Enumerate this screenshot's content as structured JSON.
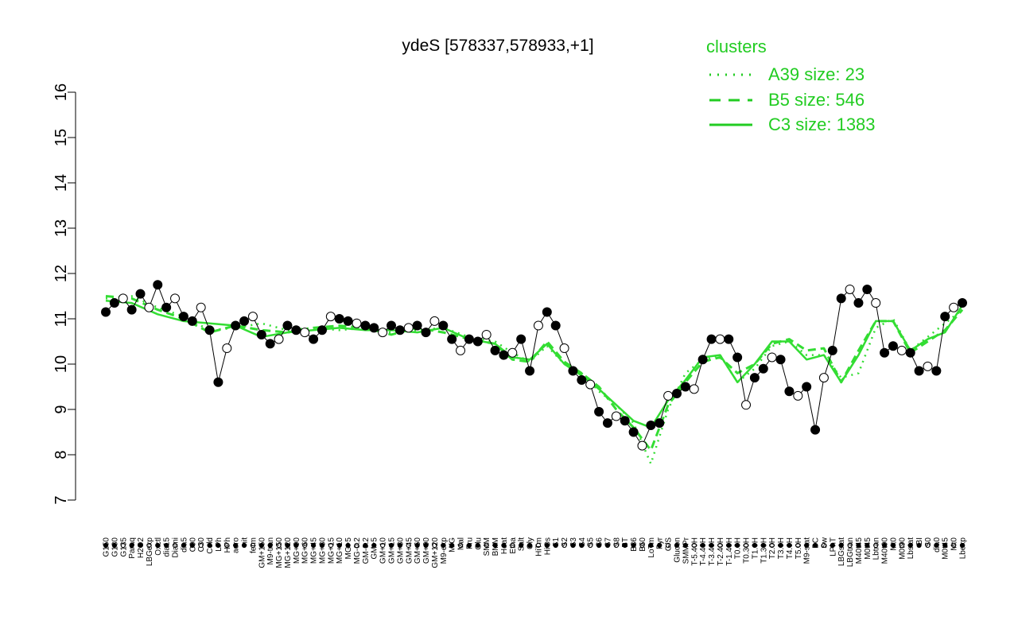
{
  "chart_data": {
    "type": "line",
    "title": "ydeS [578337,578933,+1]",
    "xlabel": "",
    "ylabel": "",
    "ylim": [
      7,
      16
    ],
    "yticks": [
      7,
      8,
      9,
      10,
      11,
      12,
      13,
      14,
      15,
      16
    ],
    "legend": {
      "title": "clusters",
      "placement": "top-right",
      "entries": [
        {
          "label": "A39 size: 23",
          "style": "dotted"
        },
        {
          "label": "B5 size: 546",
          "style": "dashed"
        },
        {
          "label": "C3 size: 1383",
          "style": "solid"
        }
      ]
    },
    "xtick_labels": [
      "G150",
      "G180",
      "G135",
      "Paraq",
      "H2O2",
      "LBGexp",
      "Oxctl",
      "dia15",
      "Diami",
      "dia5",
      "C90",
      "C30",
      "Cold",
      "LPh",
      "HPh",
      "aero",
      "nit",
      "ferm",
      "GM+150",
      "M9-tran",
      "MG+150",
      "MG+120",
      "MG+90",
      "MG+60",
      "MG+45",
      "MG+30",
      "MG+15",
      "MG+10",
      "MG+5",
      "MG-0.2",
      "GM-0.2",
      "GM+5",
      "GM+10",
      "GM+15",
      "GM+30",
      "GM+45",
      "GM+60",
      "GM+90",
      "GM+120",
      "M9-exp",
      "M/G",
      "Mal",
      "Fru",
      "Glu",
      "SMM",
      "BMM",
      "Heat",
      "Etha",
      "Salt",
      "Gly",
      "HiTm",
      "HiOs",
      "S1",
      "S2",
      "S3",
      "S4",
      "S5",
      "S6",
      "S7",
      "S8",
      "BT",
      "B36",
      "B60",
      "LoTm",
      "Pyr",
      "G/S",
      "Glucon",
      "SMMPr",
      "T-5.40H",
      "T-4.40H",
      "T-3.40H",
      "T-2.40H",
      "T-1.40H",
      "T0.0H",
      "T0.30H",
      "T1.0H",
      "T1.30H",
      "T2.0H",
      "T3.0H",
      "T4.0H",
      "T5.0H",
      "M9-stat",
      "BC",
      "Sw",
      "LPhT",
      "LBGstat",
      "LBGtran",
      "M40t45",
      "M0t45",
      "Lbtran",
      "M40t90",
      "Mt0",
      "M0t90",
      "Lbstat",
      "BI",
      "S0",
      "dia0",
      "M0t45",
      "Mt0",
      "Lbexp"
    ],
    "series": [
      {
        "name": "A39 size: 23",
        "style": "dotted",
        "x": [
          1,
          4,
          7,
          10,
          13,
          16,
          19,
          22,
          25,
          28,
          31,
          34,
          37,
          40,
          43,
          46,
          48,
          50,
          52,
          54,
          56,
          58,
          60,
          62,
          64,
          66,
          68,
          70,
          72,
          74,
          76,
          78,
          80,
          82,
          84,
          86,
          88,
          90,
          92,
          94,
          96,
          98,
          100
        ],
        "values": [
          11.45,
          11.5,
          11.25,
          11.05,
          10.75,
          10.8,
          10.9,
          10.75,
          10.8,
          10.75,
          10.8,
          10.7,
          10.75,
          10.8,
          10.6,
          10.5,
          10.25,
          10.05,
          10.4,
          10.0,
          9.8,
          9.4,
          9.1,
          8.7,
          7.8,
          9.0,
          9.8,
          10.1,
          10.2,
          9.6,
          9.9,
          10.4,
          10.5,
          10.2,
          10.2,
          9.7,
          9.8,
          10.8,
          11.0,
          10.3,
          10.6,
          10.9,
          11.2
        ]
      },
      {
        "name": "B5 size: 546",
        "style": "dashed",
        "x": [
          1,
          4,
          7,
          10,
          13,
          16,
          19,
          22,
          25,
          28,
          31,
          34,
          37,
          40,
          43,
          46,
          48,
          50,
          52,
          54,
          56,
          58,
          60,
          62,
          64,
          66,
          68,
          70,
          72,
          74,
          76,
          78,
          80,
          82,
          84,
          86,
          88,
          90,
          92,
          94,
          96,
          98,
          100
        ],
        "values": [
          11.5,
          11.45,
          11.2,
          11.0,
          10.7,
          10.85,
          10.75,
          10.7,
          10.8,
          10.85,
          10.8,
          10.65,
          10.8,
          10.7,
          10.55,
          10.45,
          10.1,
          10.05,
          10.5,
          10.05,
          9.8,
          9.5,
          9.0,
          8.6,
          8.1,
          9.1,
          9.6,
          10.05,
          10.15,
          9.8,
          10.0,
          10.45,
          10.55,
          10.3,
          10.35,
          9.6,
          10.3,
          10.95,
          10.95,
          10.25,
          10.5,
          10.75,
          11.2
        ]
      },
      {
        "name": "C3 size: 1383",
        "style": "solid",
        "x": [
          1,
          4,
          7,
          10,
          13,
          16,
          19,
          22,
          25,
          28,
          31,
          34,
          37,
          40,
          43,
          46,
          48,
          50,
          52,
          54,
          56,
          58,
          60,
          62,
          64,
          66,
          68,
          70,
          72,
          74,
          76,
          78,
          80,
          82,
          84,
          86,
          88,
          90,
          92,
          94,
          96,
          98,
          100
        ],
        "values": [
          11.4,
          11.35,
          11.1,
          10.95,
          10.9,
          10.85,
          10.6,
          10.7,
          10.75,
          10.8,
          10.75,
          10.75,
          10.7,
          10.8,
          10.55,
          10.45,
          10.15,
          10.1,
          10.45,
          10.0,
          9.75,
          9.45,
          9.1,
          8.75,
          8.6,
          9.2,
          9.65,
          10.15,
          10.2,
          9.6,
          10.0,
          10.5,
          10.5,
          10.1,
          10.2,
          9.6,
          10.2,
          10.95,
          10.95,
          10.3,
          10.55,
          10.7,
          11.3
        ]
      },
      {
        "name": "",
        "style": "points",
        "x": [
          1,
          2,
          3,
          4,
          5,
          6,
          7,
          8,
          9,
          10,
          11,
          12,
          13,
          14,
          15,
          16,
          17,
          18,
          19,
          20,
          21,
          22,
          23,
          24,
          25,
          26,
          27,
          28,
          29,
          30,
          31,
          32,
          33,
          34,
          35,
          36,
          37,
          38,
          39,
          40,
          41,
          42,
          43,
          44,
          45,
          46,
          47,
          48,
          49,
          50,
          51,
          52,
          53,
          54,
          55,
          56,
          57,
          58,
          59,
          60,
          61,
          62,
          63,
          64,
          65,
          66,
          67,
          68,
          69,
          70,
          71,
          72,
          73,
          74,
          75,
          76,
          77,
          78,
          79,
          80,
          81,
          82,
          83,
          84,
          85,
          86,
          87,
          88,
          89,
          90,
          91,
          92,
          93,
          94,
          95,
          96,
          97,
          98,
          99,
          100
        ],
        "values": [
          11.15,
          11.35,
          11.45,
          11.2,
          11.55,
          11.25,
          11.75,
          11.25,
          11.45,
          11.05,
          10.95,
          11.25,
          10.75,
          9.6,
          10.35,
          10.85,
          10.95,
          11.05,
          10.65,
          10.45,
          10.55,
          10.85,
          10.75,
          10.7,
          10.55,
          10.75,
          11.05,
          11.0,
          10.95,
          10.9,
          10.85,
          10.8,
          10.7,
          10.85,
          10.75,
          10.8,
          10.85,
          10.7,
          10.95,
          10.85,
          10.55,
          10.3,
          10.55,
          10.5,
          10.65,
          10.3,
          10.2,
          10.25,
          10.55,
          9.85,
          10.85,
          11.15,
          10.85,
          10.35,
          9.85,
          9.65,
          9.55,
          8.95,
          8.7,
          8.85,
          8.75,
          8.5,
          8.2,
          8.65,
          8.7,
          9.3,
          9.35,
          9.5,
          9.45,
          10.1,
          10.55,
          10.55,
          10.55,
          10.15,
          9.1,
          9.7,
          9.9,
          10.15,
          10.1,
          9.4,
          9.3,
          9.5,
          8.55,
          9.7,
          10.3,
          11.45,
          11.65,
          11.35,
          11.65,
          11.35,
          10.25,
          10.4,
          10.3,
          10.25,
          9.85,
          9.95,
          9.85,
          11.05,
          11.25,
          11.35
        ]
      }
    ]
  }
}
